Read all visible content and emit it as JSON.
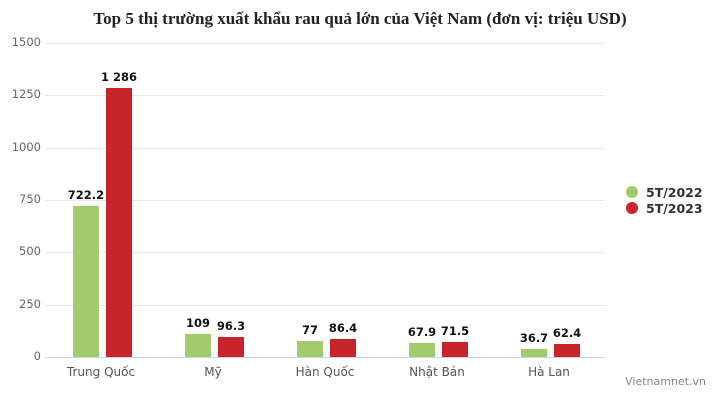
{
  "chart_data": {
    "type": "bar",
    "title": "Top 5 thị trường xuất khẩu rau quả lớn của Việt Nam (đơn vị: triệu USD)",
    "xlabel": "",
    "ylabel": "",
    "ylim": [
      0,
      1500
    ],
    "yticks": [
      "0",
      "250",
      "500",
      "750",
      "1000",
      "1250",
      "1500"
    ],
    "grid": true,
    "legend_position": "right",
    "categories": [
      "Trung Quốc",
      "Mỹ",
      "Hàn Quốc",
      "Nhật Bản",
      "Hà Lan"
    ],
    "series": [
      {
        "name": "5T/2022",
        "color": "#a2cc6b",
        "values": [
          722.2,
          109,
          77,
          67.9,
          36.7
        ],
        "labels": [
          "722.2",
          "109",
          "77",
          "67.9",
          "36.7"
        ]
      },
      {
        "name": "5T/2023",
        "color": "#c8242b",
        "values": [
          1286,
          96.3,
          86.4,
          71.5,
          62.4
        ],
        "labels": [
          "1 286",
          "96.3",
          "86.4",
          "71.5",
          "62.4"
        ]
      }
    ]
  },
  "credit": "Vietnamnet.vn"
}
